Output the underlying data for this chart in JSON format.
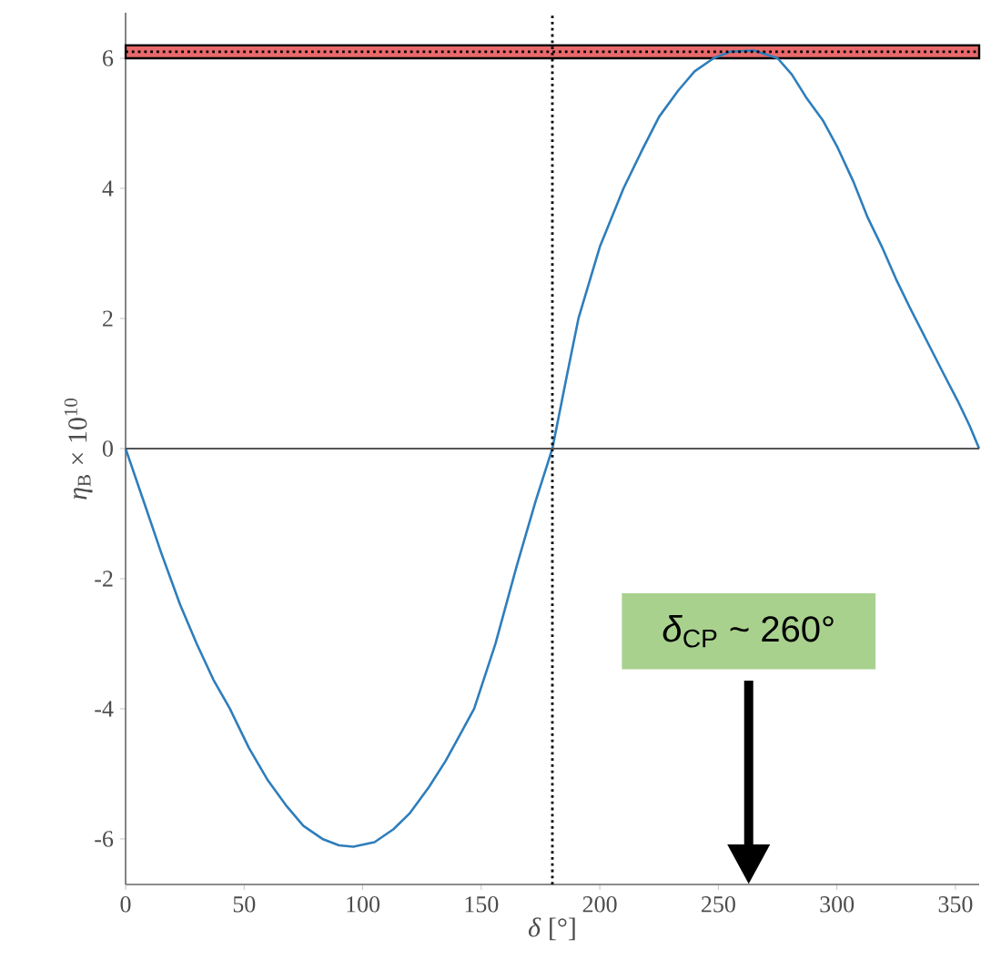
{
  "chart_data": {
    "type": "line",
    "xlabel": "*δ* [°]",
    "ylabel": "*η*$_{B}$ × 10$^{10}$",
    "x": [
      0,
      8,
      15,
      23,
      30,
      37,
      44,
      52,
      60,
      68,
      75,
      83,
      90,
      96,
      105,
      113,
      120,
      128,
      135,
      141,
      147,
      156,
      165,
      173,
      180,
      186,
      191,
      200,
      210,
      218,
      225,
      233,
      240,
      248,
      255,
      265,
      275,
      281,
      287,
      294,
      300,
      307,
      313,
      319,
      325,
      331,
      338,
      345,
      351,
      356,
      360
    ],
    "series": [
      {
        "color": "#2e7ebc",
        "values": [
          0,
          -0.85,
          -1.6,
          -2.4,
          -3.0,
          -3.55,
          -4.0,
          -4.6,
          -5.1,
          -5.5,
          -5.8,
          -6.0,
          -6.1,
          -6.12,
          -6.05,
          -5.85,
          -5.6,
          -5.2,
          -4.8,
          -4.4,
          -4.0,
          -3.0,
          -1.8,
          -0.8,
          0,
          1.1,
          2.0,
          3.1,
          4.0,
          4.6,
          5.1,
          5.5,
          5.8,
          6.0,
          6.1,
          6.12,
          6.0,
          5.75,
          5.4,
          5.05,
          4.65,
          4.1,
          3.55,
          3.1,
          2.6,
          2.15,
          1.65,
          1.15,
          0.73,
          0.35,
          0
        ]
      }
    ],
    "xlim": [
      0,
      360
    ],
    "ylim": [
      -6.7,
      6.7
    ],
    "xticks": [
      0,
      50,
      100,
      150,
      200,
      250,
      300,
      350
    ],
    "yticks": [
      -6,
      -4,
      -2,
      0,
      2,
      4,
      6
    ],
    "bands": [
      {
        "axis": "y",
        "from": 6.0,
        "to": 6.2,
        "color": "#e8696b"
      }
    ],
    "ref_lines": [
      {
        "axis": "y",
        "value": 6.1,
        "color": "#000000",
        "line_style": "dotted"
      },
      {
        "axis": "x",
        "value": 180,
        "color": "#000000",
        "line_style": "dotted"
      },
      {
        "axis": "y",
        "value": 0,
        "color": "#555555",
        "line_style": "solid"
      }
    ],
    "annotations": [
      "*δ*$_{CP}$ ~ 260°"
    ],
    "grid": false,
    "marker": "none",
    "line_style": "solid"
  }
}
